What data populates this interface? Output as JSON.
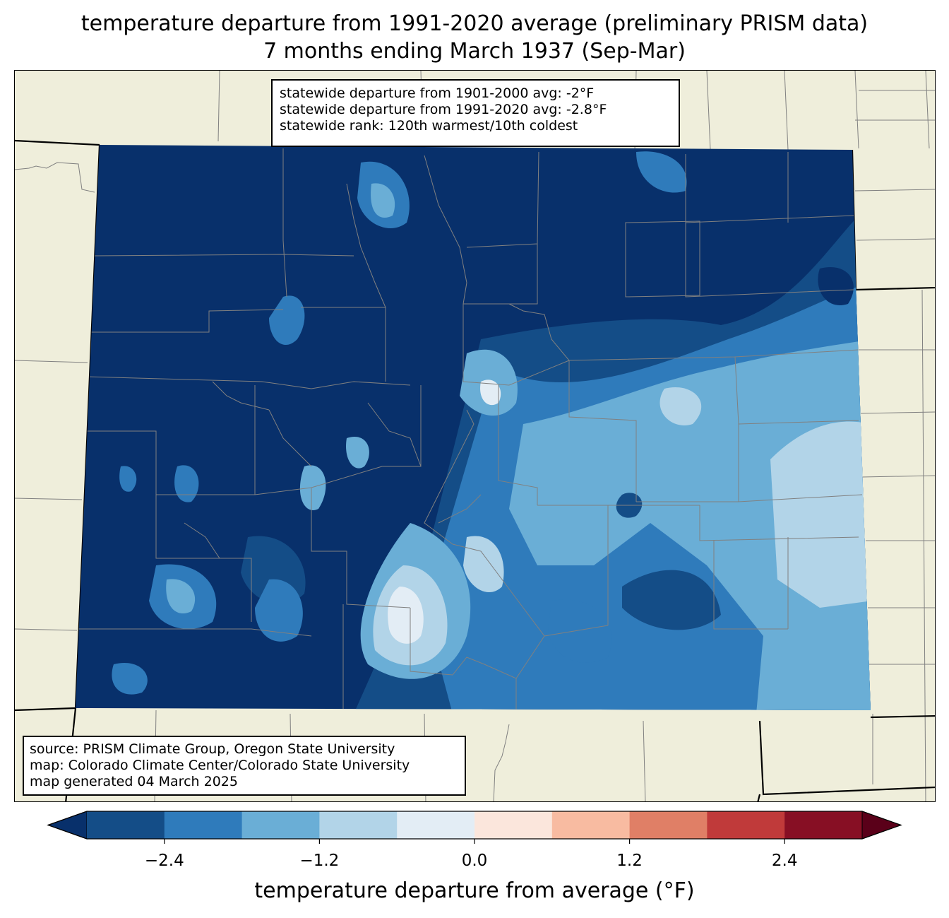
{
  "title_line1": "temperature departure from 1991-2020 average (preliminary PRISM data)",
  "title_line2": "7 months ending March 1937 (Sep-Mar)",
  "stats": {
    "line1": "statewide departure from 1901-2000 avg: -2°F",
    "line2": "statewide departure from 1991-2020 avg: -2.8°F",
    "line3": "statewide rank: 120th warmest/10th coldest"
  },
  "source": {
    "line1": "source: PRISM Climate Group, Oregon State University",
    "line2": "map: Colorado Climate Center/Colorado State University",
    "line3": "map generated 04 March 2025"
  },
  "colorbar": {
    "label": "temperature departure from average (°F)",
    "ticks": [
      "−2.4",
      "−1.2",
      "0.0",
      "1.2",
      "2.4"
    ],
    "tick_values": [
      -2.4,
      -1.2,
      0.0,
      1.2,
      2.4
    ],
    "min": -3.0,
    "max": 3.0,
    "colors": [
      "#08306b",
      "#144d87",
      "#2f7bbb",
      "#6aaed6",
      "#b2d4e8",
      "#e3edf5",
      "#fbe6dc",
      "#f8bba1",
      "#e07f66",
      "#c03a3a",
      "#870f24",
      "#5a0019"
    ]
  },
  "map_colors": {
    "land": "#efeedb",
    "border": "#000000",
    "county": "#808080"
  }
}
